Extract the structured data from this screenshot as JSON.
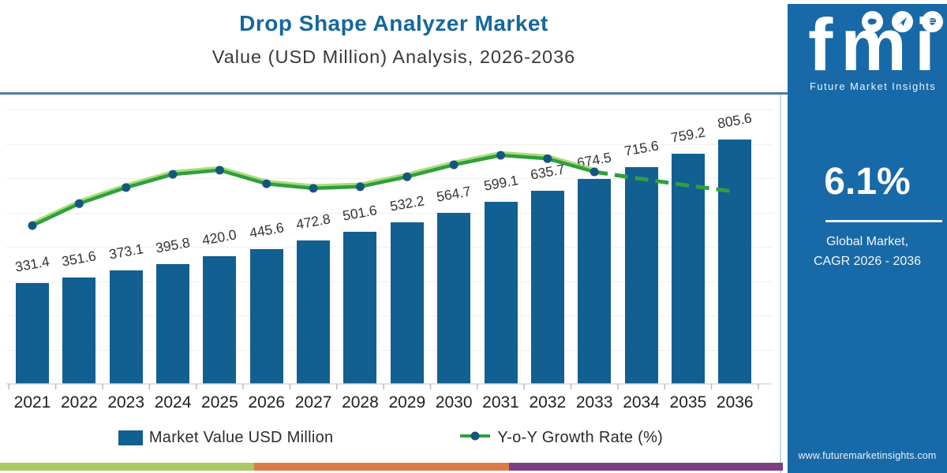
{
  "header": {
    "title": "Drop Shape Analyzer Market",
    "subtitle": "Value (USD Million) Analysis, 2026-2036"
  },
  "chart_data": {
    "type": "bar",
    "title": "Drop Shape Analyzer Market",
    "subtitle": "Value (USD Million) Analysis, 2026-2036",
    "categories": [
      "2021",
      "2022",
      "2023",
      "2024",
      "2025",
      "2026",
      "2027",
      "2028",
      "2029",
      "2030",
      "2031",
      "2032",
      "2033",
      "2034",
      "2035",
      "2036"
    ],
    "series": [
      {
        "name": "Market Value USD Million",
        "type": "bar",
        "values": [
          331.4,
          351.6,
          373.1,
          395.8,
          420.0,
          445.6,
          472.8,
          501.6,
          532.2,
          564.7,
          599.1,
          635.7,
          674.5,
          715.6,
          759.2,
          805.6
        ],
        "value_labels": [
          "331.4",
          "351.6",
          "373.1",
          "395.8",
          "420.0",
          "445.6",
          "472.8",
          "501.6",
          "532.2",
          "564.7",
          "599.1",
          "635.7",
          "674.5",
          "715.6",
          "759.2",
          "805.6"
        ]
      },
      {
        "name": "Y-o-Y Growth Rate (%)",
        "type": "line",
        "estimated_percent": [
          5.0,
          5.53,
          5.92,
          6.24,
          6.34,
          6.01,
          5.9,
          5.94,
          6.18,
          6.47,
          6.7,
          6.62,
          6.3,
          6.13,
          5.97,
          5.82
        ],
        "solid_through_index": 12,
        "style_note": "solid with dot markers 2021-2033, dashed without markers 2034-2036"
      }
    ],
    "ylim": [
      0,
      850
    ],
    "value_labels_shown": true,
    "grid": "faint horizontal gridlines",
    "legend_position": "bottom"
  },
  "legend": {
    "bar_label": "Market Value USD Million",
    "line_label": "Y-o-Y Growth Rate (%)"
  },
  "sidebar": {
    "logo_text": "fmi",
    "logo_caption": "Future Market Insights",
    "icons": [
      "map-icon",
      "plane-icon",
      "globe-icon"
    ],
    "cagr_value": "6.1%",
    "cagr_caption_line1": "Global Market,",
    "cagr_caption_line2": "CAGR 2026 - 2036",
    "website": "www.futuremarketinsights.com"
  },
  "colors": {
    "bar": "#125f92",
    "line": "#2f9f3e",
    "line_glow": "#8bd24f",
    "marker": "#14577e",
    "sidebar_bg": "#1869a8",
    "title": "#15689e",
    "subtitle_text": "#383838",
    "label_text": "#333333",
    "axis_text": "#1f1f1f",
    "divider": "#4f7da3",
    "panel_border": "#c3dcef",
    "grid": "#efefef",
    "axis_line": "#d7d7d7",
    "tick": "#bbbbbb",
    "tricolor_green": "#a9c964",
    "tricolor_orange": "#dc7b49",
    "tricolor_purple": "#7b3f82"
  }
}
